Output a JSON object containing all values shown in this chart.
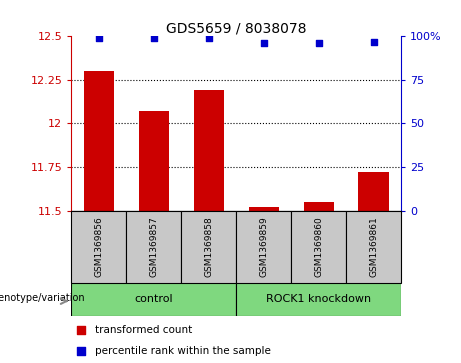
{
  "title": "GDS5659 / 8038078",
  "samples": [
    "GSM1369856",
    "GSM1369857",
    "GSM1369858",
    "GSM1369859",
    "GSM1369860",
    "GSM1369861"
  ],
  "red_values": [
    12.3,
    12.07,
    12.19,
    11.52,
    11.55,
    11.72
  ],
  "blue_values": [
    99,
    99,
    99,
    96,
    96,
    97
  ],
  "ylim_left": [
    11.5,
    12.5
  ],
  "ylim_right": [
    0,
    100
  ],
  "yticks_left": [
    11.5,
    11.75,
    12.0,
    12.25,
    12.5
  ],
  "yticks_right": [
    0,
    25,
    50,
    75,
    100
  ],
  "ytick_labels_left": [
    "11.5",
    "11.75",
    "12",
    "12.25",
    "12.5"
  ],
  "ytick_labels_right": [
    "0",
    "25",
    "50",
    "75",
    "100%"
  ],
  "bar_color": "#CC0000",
  "dot_color": "#0000CC",
  "label_area_color": "#C8C8C8",
  "group_colors": [
    "#7FD87F",
    "#7FD87F"
  ],
  "group_labels": [
    "control",
    "ROCK1 knockdown"
  ],
  "legend_red_label": "transformed count",
  "legend_blue_label": "percentile rank within the sample",
  "genotype_label": "genotype/variation"
}
